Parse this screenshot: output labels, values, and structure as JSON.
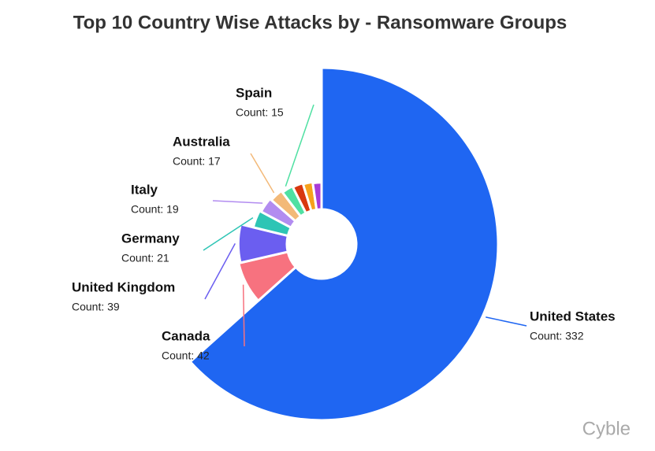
{
  "chart_data": {
    "type": "rose",
    "title": "Top 10 Country Wise Attacks by - Ransomware Groups",
    "categories": [
      "United States",
      "Canada",
      "United Kingdom",
      "Germany",
      "Italy",
      "Australia",
      "Spain",
      null,
      null,
      null
    ],
    "values": [
      332,
      42,
      39,
      21,
      19,
      17,
      15,
      14,
      13,
      12
    ],
    "value_labels": [
      "Count: 332",
      "Count: 42",
      "Count: 39",
      "Count: 21",
      "Count: 19",
      "Count: 17",
      "Count: 15",
      null,
      null,
      null
    ],
    "colors": [
      "#1f66f2",
      "#f7727f",
      "#6b5ef0",
      "#2ec5b5",
      "#b28cf0",
      "#f3b978",
      "#4fe0a2",
      "#d8380f",
      "#f6a11c",
      "#a93bd7"
    ]
  },
  "watermark": "Cyble"
}
